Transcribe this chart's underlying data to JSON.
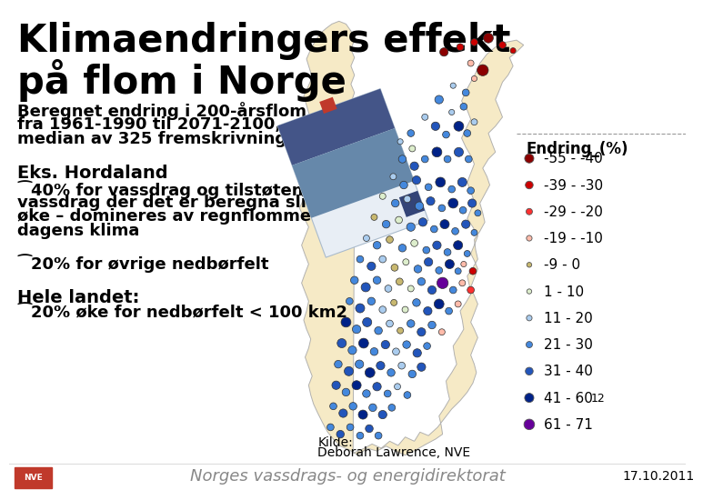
{
  "title_line1": "Klimaendringers effekt",
  "title_line2": "på flom i Norge",
  "subtitle1": "Beregnet endring i 200-årsflom",
  "subtitle2": "fra 1961-1990 til 2071-2100,",
  "subtitle3": "median av 325 fremskrivninger",
  "eks_header": "Eks. Hordaland",
  "eks_bullet1": "⁀40% for vassdrag og tilstøtende",
  "eks_bullet2": "vassdrag der det er beregna slik",
  "eks_bullet3": "øke – domineres av regnflommer i",
  "eks_bullet4": "dagens klima",
  "bullet_20pct": "⁀20% for øvrige nedbørfelt",
  "hele_landet": "Hele landet:",
  "hele_bullet": "⁀20% øke for nedbørfelt < 100 km2",
  "kilde_line1": "Kilde:",
  "kilde_line2": "Deborah Lawrence, NVE",
  "footer": "Norges vassdrags- og energidirektorat",
  "date": "17.10.2011",
  "legend_title": "Endring_(%)",
  "legend_entries": [
    {
      "label": "-55 - -40",
      "color": "#8B0000",
      "size": 13
    },
    {
      "label": "-39 - -30",
      "color": "#CC0000",
      "size": 11
    },
    {
      "label": "-29 - -20",
      "color": "#FF3030",
      "size": 9
    },
    {
      "label": "-19 - -10",
      "color": "#FFBBAA",
      "size": 8
    },
    {
      "label": "-9 - 0",
      "color": "#C8B870",
      "size": 7
    },
    {
      "label": "1 - 10",
      "color": "#DDEECC",
      "size": 7
    },
    {
      "label": "11 - 20",
      "color": "#AACCEE",
      "size": 8
    },
    {
      "label": "21 - 30",
      "color": "#4488DD",
      "size": 9
    },
    {
      "label": "31 - 40",
      "color": "#2255BB",
      "size": 11
    },
    {
      "label": "41 - 60",
      "color": "#002288",
      "size": 13
    },
    {
      "label": "61 - 71",
      "color": "#660099",
      "size": 15
    }
  ],
  "bg_color": "#FFFFFF",
  "text_color": "#000000",
  "footer_color": "#888888",
  "nve_red": "#C0392B",
  "dashed_line_color": "#999999",
  "map_fill": "#F5E8C0",
  "map_edge": "#AAAAAA",
  "dots": [
    [
      617,
      62,
      "#8B0000",
      12
    ],
    [
      640,
      55,
      "#CC0000",
      10
    ],
    [
      660,
      48,
      "#CC0000",
      10
    ],
    [
      680,
      42,
      "#8B0000",
      14
    ],
    [
      700,
      52,
      "#CC0000",
      10
    ],
    [
      715,
      60,
      "#CC0000",
      8
    ],
    [
      655,
      78,
      "#FFBBAA",
      9
    ],
    [
      672,
      88,
      "#8B0000",
      16
    ],
    [
      630,
      110,
      "#AACCEE",
      8
    ],
    [
      648,
      120,
      "#4488DD",
      10
    ],
    [
      660,
      100,
      "#FFBBAA",
      8
    ],
    [
      610,
      130,
      "#4488DD",
      12
    ],
    [
      628,
      148,
      "#AACCEE",
      8
    ],
    [
      645,
      140,
      "#4488DD",
      10
    ],
    [
      590,
      155,
      "#AACCEE",
      9
    ],
    [
      605,
      168,
      "#2255BB",
      12
    ],
    [
      620,
      180,
      "#4488DD",
      10
    ],
    [
      638,
      168,
      "#002288",
      14
    ],
    [
      650,
      178,
      "#4488DD",
      10
    ],
    [
      660,
      162,
      "#AACCEE",
      9
    ],
    [
      570,
      178,
      "#4488DD",
      10
    ],
    [
      555,
      190,
      "#AACCEE",
      8
    ],
    [
      572,
      200,
      "#DDEECC",
      9
    ],
    [
      558,
      215,
      "#4488DD",
      11
    ],
    [
      575,
      225,
      "#2255BB",
      12
    ],
    [
      590,
      215,
      "#4488DD",
      10
    ],
    [
      607,
      205,
      "#002288",
      14
    ],
    [
      622,
      215,
      "#4488DD",
      10
    ],
    [
      638,
      205,
      "#2255BB",
      13
    ],
    [
      652,
      215,
      "#4488DD",
      10
    ],
    [
      545,
      240,
      "#AACCEE",
      9
    ],
    [
      560,
      252,
      "#4488DD",
      11
    ],
    [
      578,
      245,
      "#2255BB",
      12
    ],
    [
      595,
      255,
      "#4488DD",
      10
    ],
    [
      612,
      248,
      "#002288",
      14
    ],
    [
      628,
      258,
      "#4488DD",
      10
    ],
    [
      643,
      248,
      "#2255BB",
      13
    ],
    [
      655,
      260,
      "#4488DD",
      10
    ],
    [
      530,
      268,
      "#DDEECC",
      9
    ],
    [
      548,
      278,
      "#4488DD",
      11
    ],
    [
      565,
      272,
      "#AACCEE",
      10
    ],
    [
      582,
      282,
      "#4488DD",
      12
    ],
    [
      598,
      275,
      "#2255BB",
      12
    ],
    [
      614,
      285,
      "#4488DD",
      10
    ],
    [
      630,
      278,
      "#002288",
      14
    ],
    [
      644,
      288,
      "#4488DD",
      10
    ],
    [
      657,
      278,
      "#2255BB",
      12
    ],
    [
      665,
      292,
      "#4488DD",
      9
    ],
    [
      518,
      298,
      "#C8B870",
      9
    ],
    [
      535,
      308,
      "#4488DD",
      11
    ],
    [
      553,
      302,
      "#DDEECC",
      10
    ],
    [
      570,
      312,
      "#4488DD",
      12
    ],
    [
      587,
      305,
      "#2255BB",
      12
    ],
    [
      603,
      315,
      "#4488DD",
      10
    ],
    [
      618,
      308,
      "#002288",
      13
    ],
    [
      633,
      318,
      "#4488DD",
      10
    ],
    [
      648,
      308,
      "#2255BB",
      12
    ],
    [
      660,
      320,
      "#4488DD",
      9
    ],
    [
      507,
      328,
      "#AACCEE",
      9
    ],
    [
      522,
      338,
      "#4488DD",
      11
    ],
    [
      540,
      330,
      "#C8B870",
      10
    ],
    [
      558,
      342,
      "#4488DD",
      11
    ],
    [
      575,
      335,
      "#DDEECC",
      10
    ],
    [
      592,
      345,
      "#4488DD",
      10
    ],
    [
      607,
      338,
      "#2255BB",
      12
    ],
    [
      622,
      348,
      "#4488DD",
      10
    ],
    [
      637,
      338,
      "#002288",
      13
    ],
    [
      650,
      350,
      "#4488DD",
      9
    ],
    [
      498,
      358,
      "#4488DD",
      10
    ],
    [
      514,
      368,
      "#2255BB",
      12
    ],
    [
      530,
      358,
      "#AACCEE",
      10
    ],
    [
      547,
      370,
      "#C8B870",
      10
    ],
    [
      563,
      362,
      "#DDEECC",
      9
    ],
    [
      580,
      372,
      "#4488DD",
      11
    ],
    [
      595,
      362,
      "#2255BB",
      12
    ],
    [
      610,
      374,
      "#4488DD",
      10
    ],
    [
      625,
      365,
      "#002288",
      13
    ],
    [
      637,
      375,
      "#4488DD",
      9
    ],
    [
      645,
      365,
      "#FFBBAA",
      8
    ],
    [
      658,
      375,
      "#CC0000",
      10
    ],
    [
      490,
      388,
      "#4488DD",
      11
    ],
    [
      506,
      398,
      "#2255BB",
      13
    ],
    [
      522,
      388,
      "#4488DD",
      11
    ],
    [
      538,
      400,
      "#AACCEE",
      10
    ],
    [
      554,
      390,
      "#C8B870",
      10
    ],
    [
      570,
      400,
      "#DDEECC",
      9
    ],
    [
      585,
      390,
      "#4488DD",
      11
    ],
    [
      600,
      402,
      "#2255BB",
      12
    ],
    [
      615,
      392,
      "#660099",
      16
    ],
    [
      630,
      402,
      "#4488DD",
      10
    ],
    [
      643,
      392,
      "#FFBBAA",
      9
    ],
    [
      655,
      402,
      "#FF3030",
      10
    ],
    [
      483,
      418,
      "#4488DD",
      10
    ],
    [
      498,
      428,
      "#2255BB",
      13
    ],
    [
      514,
      418,
      "#4488DD",
      11
    ],
    [
      530,
      430,
      "#AACCEE",
      10
    ],
    [
      546,
      420,
      "#C8B870",
      9
    ],
    [
      562,
      430,
      "#DDEECC",
      9
    ],
    [
      578,
      420,
      "#4488DD",
      11
    ],
    [
      594,
      432,
      "#2255BB",
      12
    ],
    [
      610,
      422,
      "#002288",
      14
    ],
    [
      624,
      432,
      "#4488DD",
      10
    ],
    [
      637,
      422,
      "#FFBBAA",
      9
    ],
    [
      478,
      448,
      "#002288",
      14
    ],
    [
      493,
      458,
      "#4488DD",
      12
    ],
    [
      508,
      448,
      "#2255BB",
      13
    ],
    [
      524,
      460,
      "#4488DD",
      11
    ],
    [
      540,
      450,
      "#AACCEE",
      10
    ],
    [
      555,
      460,
      "#C8B870",
      9
    ],
    [
      570,
      450,
      "#4488DD",
      11
    ],
    [
      585,
      462,
      "#2255BB",
      12
    ],
    [
      600,
      452,
      "#4488DD",
      11
    ],
    [
      614,
      462,
      "#FFBBAA",
      9
    ],
    [
      472,
      478,
      "#2255BB",
      13
    ],
    [
      487,
      488,
      "#4488DD",
      12
    ],
    [
      503,
      478,
      "#002288",
      14
    ],
    [
      518,
      490,
      "#4488DD",
      11
    ],
    [
      534,
      480,
      "#2255BB",
      12
    ],
    [
      549,
      490,
      "#AACCEE",
      10
    ],
    [
      564,
      480,
      "#4488DD",
      11
    ],
    [
      579,
      492,
      "#2255BB",
      12
    ],
    [
      593,
      482,
      "#4488DD",
      10
    ],
    [
      467,
      508,
      "#4488DD",
      11
    ],
    [
      482,
      518,
      "#2255BB",
      13
    ],
    [
      497,
      508,
      "#4488DD",
      12
    ],
    [
      512,
      520,
      "#002288",
      14
    ],
    [
      527,
      510,
      "#2255BB",
      12
    ],
    [
      542,
      520,
      "#4488DD",
      11
    ],
    [
      557,
      510,
      "#AACCEE",
      10
    ],
    [
      572,
      522,
      "#4488DD",
      11
    ],
    [
      585,
      512,
      "#2255BB",
      12
    ],
    [
      464,
      538,
      "#2255BB",
      12
    ],
    [
      478,
      548,
      "#4488DD",
      11
    ],
    [
      493,
      538,
      "#002288",
      13
    ],
    [
      507,
      550,
      "#4488DD",
      11
    ],
    [
      522,
      540,
      "#2255BB",
      12
    ],
    [
      537,
      550,
      "#4488DD",
      10
    ],
    [
      551,
      540,
      "#AACCEE",
      9
    ],
    [
      565,
      552,
      "#4488DD",
      10
    ],
    [
      460,
      568,
      "#4488DD",
      10
    ],
    [
      474,
      578,
      "#2255BB",
      12
    ],
    [
      488,
      568,
      "#4488DD",
      11
    ],
    [
      502,
      580,
      "#002288",
      13
    ],
    [
      516,
      570,
      "#4488DD",
      11
    ],
    [
      530,
      580,
      "#2255BB",
      12
    ],
    [
      543,
      570,
      "#4488DD",
      10
    ],
    [
      456,
      598,
      "#4488DD",
      10
    ],
    [
      470,
      608,
      "#2255BB",
      11
    ],
    [
      484,
      598,
      "#4488DD",
      10
    ],
    [
      498,
      610,
      "#4488DD",
      10
    ],
    [
      511,
      600,
      "#2255BB",
      11
    ],
    [
      524,
      610,
      "#4488DD",
      10
    ]
  ]
}
